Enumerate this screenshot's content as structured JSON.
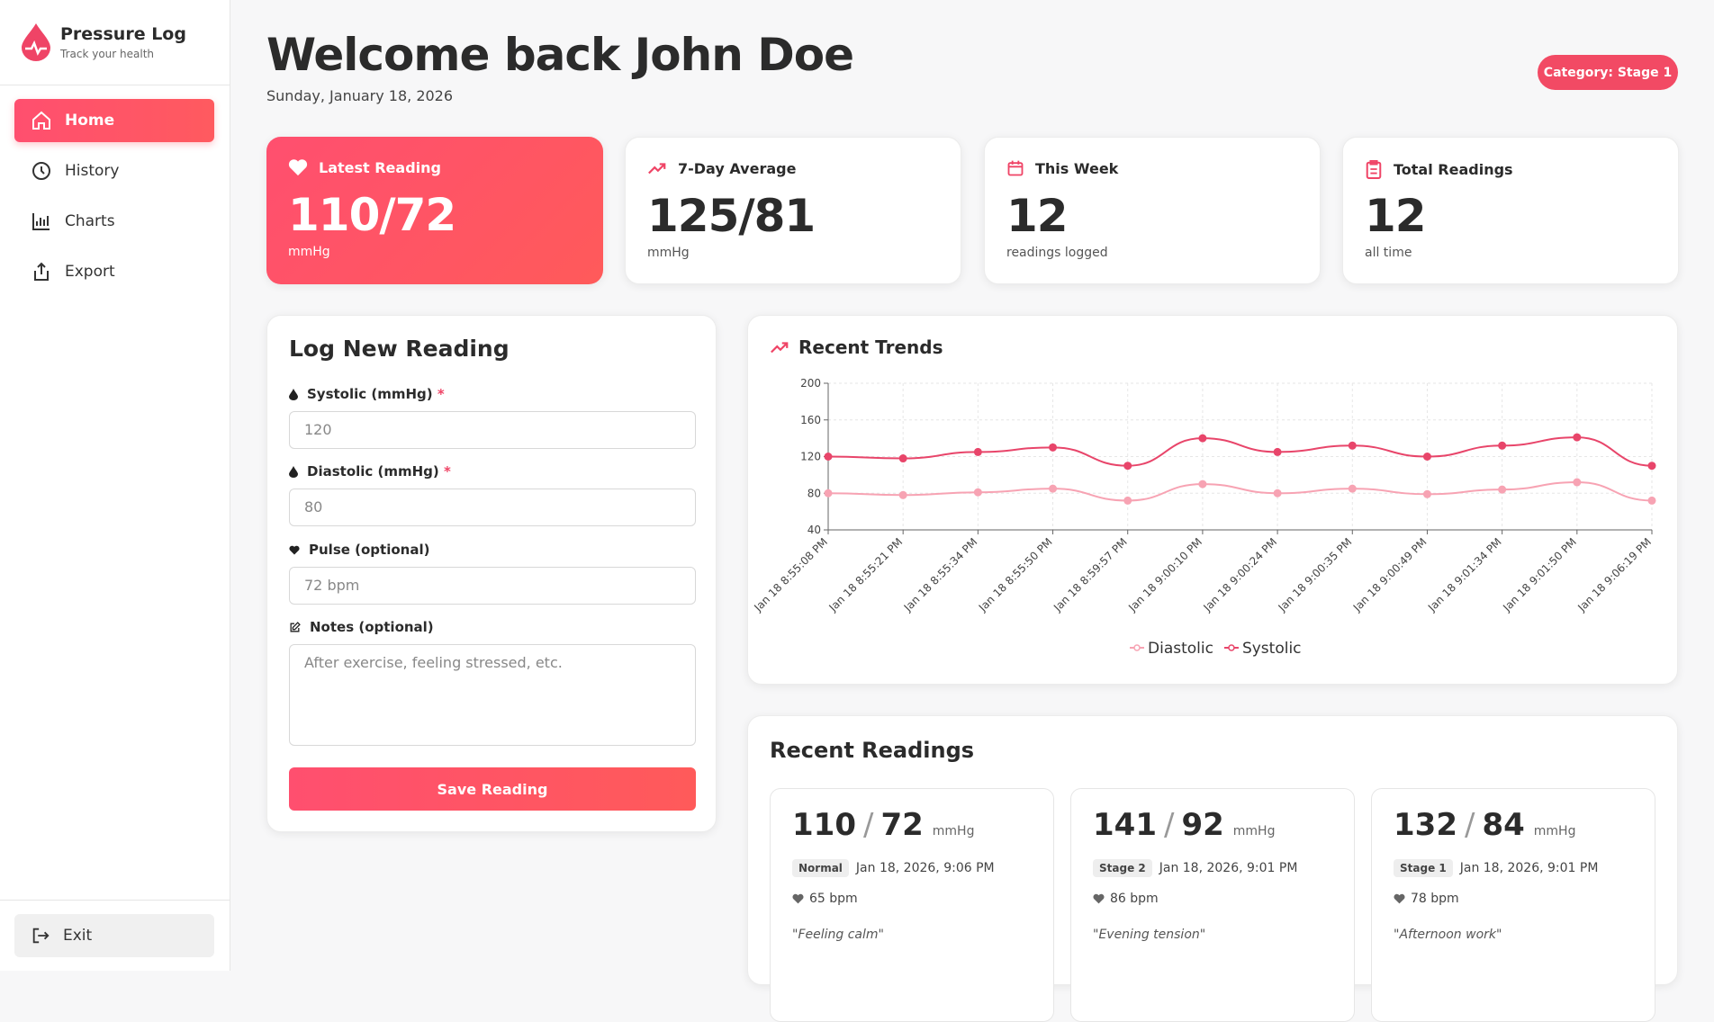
{
  "sidebar": {
    "app_name": "Pressure Log",
    "tagline": "Track your health",
    "nav": [
      "Home",
      "History",
      "Charts",
      "Export"
    ],
    "exit": "Exit"
  },
  "header": {
    "title": "Welcome back John Doe",
    "date": "Sunday, January 18, 2026",
    "badge": "Category: Stage 1"
  },
  "stats": [
    {
      "label": "Latest Reading",
      "value": "110/72",
      "sub": "mmHg"
    },
    {
      "label": "7-Day Average",
      "value": "125/81",
      "sub": "mmHg"
    },
    {
      "label": "This Week",
      "value": "12",
      "sub": "readings logged"
    },
    {
      "label": "Total Readings",
      "value": "12",
      "sub": "all time"
    }
  ],
  "form": {
    "title": "Log New Reading",
    "fields": [
      {
        "label": "Systolic (mmHg)",
        "required": "*",
        "placeholder": "120"
      },
      {
        "label": "Diastolic (mmHg)",
        "required": "*",
        "placeholder": "80"
      },
      {
        "label": "Pulse (optional)",
        "placeholder": "72 bpm"
      },
      {
        "label": "Notes (optional)",
        "placeholder": "After exercise, feeling stressed, etc."
      }
    ],
    "button": "Save Reading"
  },
  "chart_data": {
    "type": "line",
    "title": "Recent Trends",
    "categories": [
      "Jan 18 8:55:08 PM",
      "Jan 18 8:55:21 PM",
      "Jan 18 8:55:34 PM",
      "Jan 18 8:55:50 PM",
      "Jan 18 8:59:57 PM",
      "Jan 18 9:00:10 PM",
      "Jan 18 9:00:24 PM",
      "Jan 18 9:00:35 PM",
      "Jan 18 9:00:49 PM",
      "Jan 18 9:01:34 PM",
      "Jan 18 9:01:50 PM",
      "Jan 18 9:06:19 PM"
    ],
    "series": [
      {
        "name": "Diastolic",
        "color": "#f7a3b3",
        "values": [
          80,
          78,
          81,
          85,
          72,
          90,
          80,
          85,
          79,
          84,
          92,
          72
        ]
      },
      {
        "name": "Systolic",
        "color": "#e8456a",
        "values": [
          120,
          118,
          125,
          130,
          110,
          140,
          125,
          132,
          120,
          132,
          141,
          110
        ]
      }
    ],
    "ylim": [
      40,
      200
    ],
    "yticks": [
      40,
      80,
      120,
      160,
      200
    ],
    "grid": true,
    "legend": "bottom"
  },
  "recent": {
    "title": "Recent Readings",
    "readings": [
      {
        "systolic": 110,
        "separator": "/",
        "diastolic": 72,
        "unit": "mmHg",
        "category": "Normal",
        "time": "Jan 18, 2026, 9:06 PM",
        "pulse": "65 bpm",
        "note": "\"Feeling calm\""
      },
      {
        "systolic": 141,
        "separator": "/",
        "diastolic": 92,
        "unit": "mmHg",
        "category": "Stage 2",
        "time": "Jan 18, 2026, 9:01 PM",
        "pulse": "86 bpm",
        "note": "\"Evening tension\""
      },
      {
        "systolic": 132,
        "separator": "/",
        "diastolic": 84,
        "unit": "mmHg",
        "category": "Stage 1",
        "time": "Jan 18, 2026, 9:01 PM",
        "pulse": "78 bpm",
        "note": "\"Afternoon work\""
      }
    ]
  }
}
